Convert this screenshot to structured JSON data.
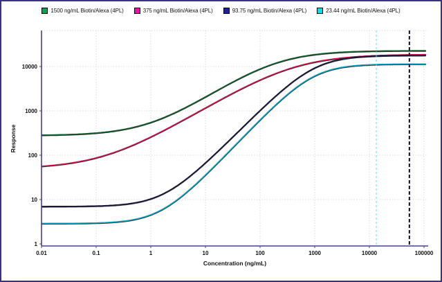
{
  "figure": {
    "background": "#ffffff",
    "border_color": "#3a3182",
    "axis_color": "#463e92",
    "grid_color": "#d9d9d9",
    "tick_text_color": "#111111"
  },
  "legend": {
    "position": "top-center",
    "items": [
      {
        "label": "1500 ng/mL Biotin/Alexa (4PL)",
        "marker_color": "#00a651"
      },
      {
        "label": "375 ng/mL Biotin/Alexa (4PL)",
        "marker_color": "#ea12ae"
      },
      {
        "label": "93.75 ng/mL Biotin/Alexa (4PL)",
        "marker_color": "#201f9e"
      },
      {
        "label": "23.44 ng/mL Biotin/Alexa (4PL)",
        "marker_color": "#00e1ef"
      }
    ]
  },
  "chart_data": {
    "type": "line",
    "title": "",
    "xlabel": "Concentration (ng/mL)",
    "ylabel": "Response",
    "x_scale": "log",
    "y_scale": "log",
    "xlim": [
      0.01,
      100000
    ],
    "ylim": [
      1,
      65000
    ],
    "x_ticks": [
      0.01,
      0.1,
      1,
      10,
      100,
      1000,
      10000,
      100000
    ],
    "y_ticks": [
      1,
      10,
      100,
      1000,
      10000
    ],
    "grid": "dotted",
    "legend_position": "top",
    "series": [
      {
        "name": "1500 ng/mL Biotin/Alexa (4PL)",
        "color": "#0d6128",
        "model": "4PL",
        "params": {
          "lower_asymptote": 280,
          "upper_asymptote": 23000,
          "ec50": 180,
          "hill_slope": 0.85
        }
      },
      {
        "name": "375 ng/mL Biotin/Alexa (4PL)",
        "color": "#d8114e",
        "model": "4PL",
        "params": {
          "lower_asymptote": 50,
          "upper_asymptote": 19000,
          "ec50": 400,
          "hill_slope": 0.75
        }
      },
      {
        "name": "93.75 ng/mL Biotin/Alexa (4PL)",
        "color": "#16123a",
        "model": "4PL",
        "params": {
          "lower_asymptote": 7,
          "upper_asymptote": 18000,
          "ec50": 950,
          "hill_slope": 1.25
        }
      },
      {
        "name": "23.44 ng/mL Biotin/Alexa (4PL)",
        "color": "#00a9c9",
        "model": "4PL",
        "params": {
          "lower_asymptote": 2.9,
          "upper_asymptote": 11500,
          "ec50": 900,
          "hill_slope": 1.3
        }
      }
    ],
    "reference_lines": [
      {
        "axis": "x",
        "value": 13400,
        "color": "#5fdde9",
        "style": "dashed",
        "width": 1
      },
      {
        "axis": "x",
        "value": 54000,
        "color": "#140d33",
        "style": "dashed",
        "width": 2
      }
    ]
  }
}
